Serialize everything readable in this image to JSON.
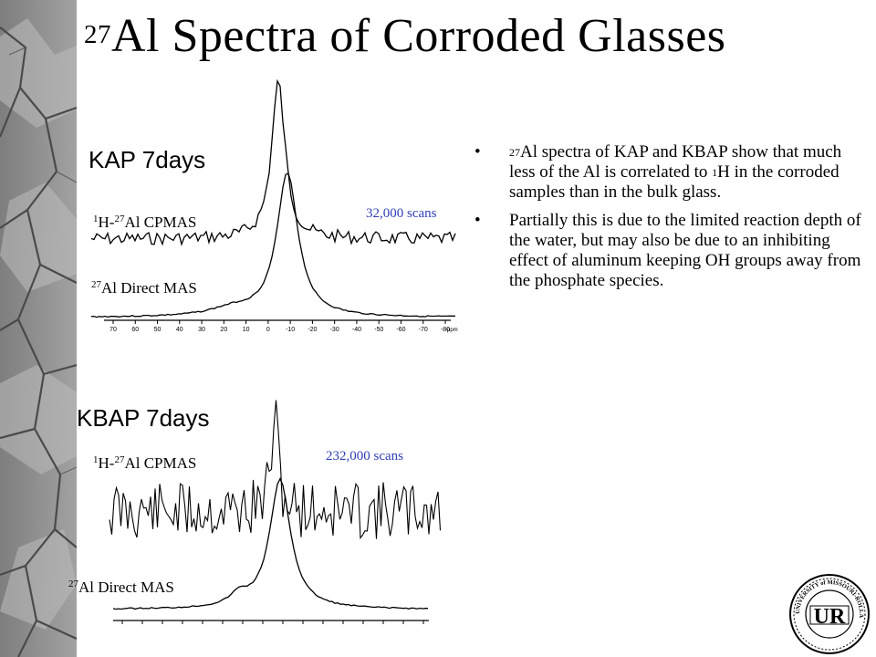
{
  "slide": {
    "title_sup": "27",
    "title_main": "Al Spectra of Corroded Glasses"
  },
  "panel_top": {
    "sample_label": "KAP   7days",
    "cpmas_sup1": "1",
    "cpmas_mid": "H-",
    "cpmas_sup2": "27",
    "cpmas_rest": "Al  CPMAS",
    "direct_sup": "27",
    "direct_rest": "Al Direct MAS",
    "scans": "32,000 scans",
    "axis_ticks": [
      "70",
      "60",
      "50",
      "40",
      "30",
      "20",
      "10",
      "0",
      "-10",
      "-20",
      "-30",
      "-40",
      "-50",
      "-60",
      "-70",
      "-80"
    ],
    "axis_unit": "ppm"
  },
  "panel_bottom": {
    "sample_label": "KBAP   7days",
    "cpmas_sup1": "1",
    "cpmas_mid": "H-",
    "cpmas_sup2": "27",
    "cpmas_rest": "Al  CPMAS",
    "direct_sup": "27",
    "direct_rest": "Al Direct MAS",
    "scans": "232,000 scans"
  },
  "bullets": [
    {
      "marker": "•",
      "sup": "27",
      "text": "Al spectra of KAP and KBAP show that much less of the Al is correlated to ",
      "sup2": "1",
      "text2": "H in the corroded samples than in the bulk glass."
    },
    {
      "marker": "•",
      "text": "Partially this is due to the limited reaction depth of the water, but may also be due to an inhibiting effect of aluminum keeping OH groups away from the phosphate species."
    }
  ],
  "seal": {
    "ring_text": "UNIVERSITY of MISSOURI-ROLLA",
    "monogram": "UR"
  },
  "colors": {
    "background": "#ffffff",
    "scans_text": "#3040b8",
    "sidebar_base": "#8c8c8c"
  }
}
